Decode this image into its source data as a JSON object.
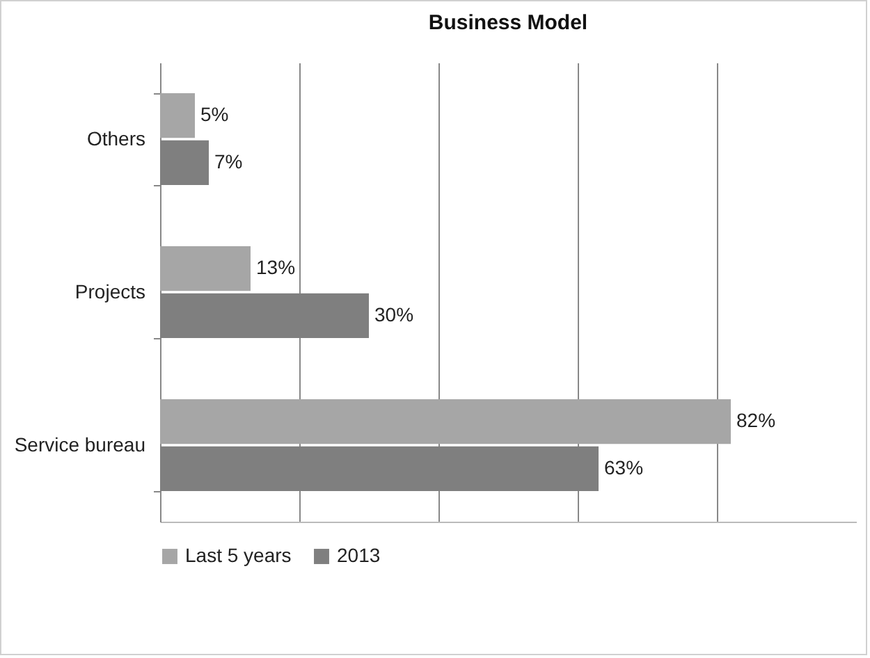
{
  "chart_data": {
    "type": "bar",
    "orientation": "horizontal",
    "title": "Business Model",
    "categories": [
      "Others",
      "Projects",
      "Service bureau"
    ],
    "series": [
      {
        "name": "Last 5 years",
        "color": "#a6a6a6",
        "values": [
          5,
          13,
          82
        ],
        "value_labels": [
          "5%",
          "13%",
          "82%"
        ]
      },
      {
        "name": "2013",
        "color": "#7f7f7f",
        "values": [
          7,
          30,
          63
        ],
        "value_labels": [
          "7%",
          "30%",
          "63%"
        ]
      }
    ],
    "xlim": [
      0,
      100
    ],
    "xticks": [
      {
        "value": 0,
        "label": null
      },
      {
        "value": 20,
        "label": null
      },
      {
        "value": 40,
        "label": null
      },
      {
        "value": 60,
        "label": null
      },
      {
        "value": 80,
        "label": null
      }
    ],
    "grid": "x",
    "legend": "bottom",
    "tick_labels": "y"
  }
}
